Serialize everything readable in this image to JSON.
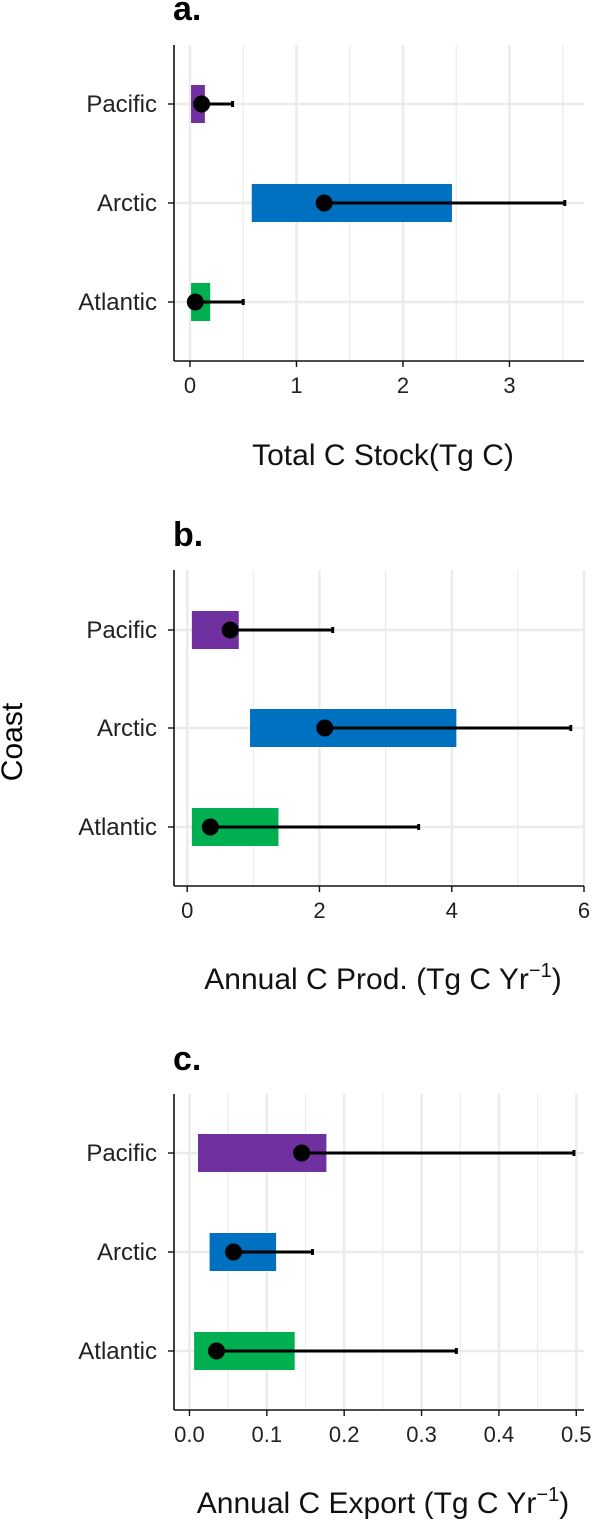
{
  "figure": {
    "shared_ylabel": "Coast"
  },
  "chart_data": [
    {
      "panel_label": "a.",
      "type": "bar",
      "orientation": "horizontal",
      "chart_form": "floating range bars with point and error bar",
      "categories": [
        "Pacific",
        "Arctic",
        "Atlantic"
      ],
      "xlabel": "Total C Stock(Tg C)",
      "xlabel_sup": "",
      "xlabel_tail": "",
      "xlim": [
        -0.15,
        3.7
      ],
      "xticks": [
        0,
        1,
        2,
        3
      ],
      "xtick_labels": [
        "0",
        "1",
        "2",
        "3"
      ],
      "minor_grid": [
        0.5,
        1.5,
        2.5,
        3.5
      ],
      "grid": true,
      "series": [
        {
          "category": "Pacific",
          "range": [
            0.01,
            0.14
          ],
          "point": 0.11,
          "whisker_high": 0.4
        },
        {
          "category": "Arctic",
          "range": [
            0.58,
            2.46
          ],
          "point": 1.26,
          "whisker_high": 3.52
        },
        {
          "category": "Atlantic",
          "range": [
            0.01,
            0.19
          ],
          "point": 0.05,
          "whisker_high": 0.5
        }
      ]
    },
    {
      "panel_label": "b.",
      "type": "bar",
      "orientation": "horizontal",
      "chart_form": "floating range bars with point and error bar",
      "categories": [
        "Pacific",
        "Arctic",
        "Atlantic"
      ],
      "xlabel": "Annual C Prod. (Tg C Yr",
      "xlabel_sup": "−1",
      "xlabel_tail": ")",
      "xlim": [
        -0.2,
        6.0
      ],
      "xticks": [
        0,
        2,
        4,
        6
      ],
      "xtick_labels": [
        "0",
        "2",
        "4",
        "6"
      ],
      "minor_grid": [
        1,
        3,
        5
      ],
      "grid": true,
      "series": [
        {
          "category": "Pacific",
          "range": [
            0.07,
            0.78
          ],
          "point": 0.65,
          "whisker_high": 2.2
        },
        {
          "category": "Arctic",
          "range": [
            0.95,
            4.07
          ],
          "point": 2.08,
          "whisker_high": 5.8
        },
        {
          "category": "Atlantic",
          "range": [
            0.07,
            1.38
          ],
          "point": 0.35,
          "whisker_high": 3.5
        }
      ]
    },
    {
      "panel_label": "c.",
      "type": "bar",
      "orientation": "horizontal",
      "chart_form": "floating range bars with point and error bar",
      "categories": [
        "Pacific",
        "Arctic",
        "Atlantic"
      ],
      "xlabel": "Annual C Export (Tg C Yr",
      "xlabel_sup": "−1",
      "xlabel_tail": ")",
      "xlim": [
        -0.02,
        0.51
      ],
      "xticks": [
        0.0,
        0.1,
        0.2,
        0.3,
        0.4,
        0.5
      ],
      "xtick_labels": [
        "0.0",
        "0.1",
        "0.2",
        "0.3",
        "0.4",
        "0.5"
      ],
      "minor_grid": [
        0.05,
        0.15,
        0.25,
        0.35,
        0.45
      ],
      "grid": true,
      "series": [
        {
          "category": "Pacific",
          "range": [
            0.011,
            0.177
          ],
          "point": 0.145,
          "whisker_high": 0.497
        },
        {
          "category": "Arctic",
          "range": [
            0.026,
            0.112
          ],
          "point": 0.057,
          "whisker_high": 0.159
        },
        {
          "category": "Atlantic",
          "range": [
            0.006,
            0.136
          ],
          "point": 0.035,
          "whisker_high": 0.345
        }
      ]
    }
  ],
  "colors": {
    "Pacific": "#7030a0",
    "Arctic": "#0070c0",
    "Atlantic": "#00b050",
    "grid": "#ebebeb",
    "axis": "#111111",
    "point": "#000000"
  }
}
